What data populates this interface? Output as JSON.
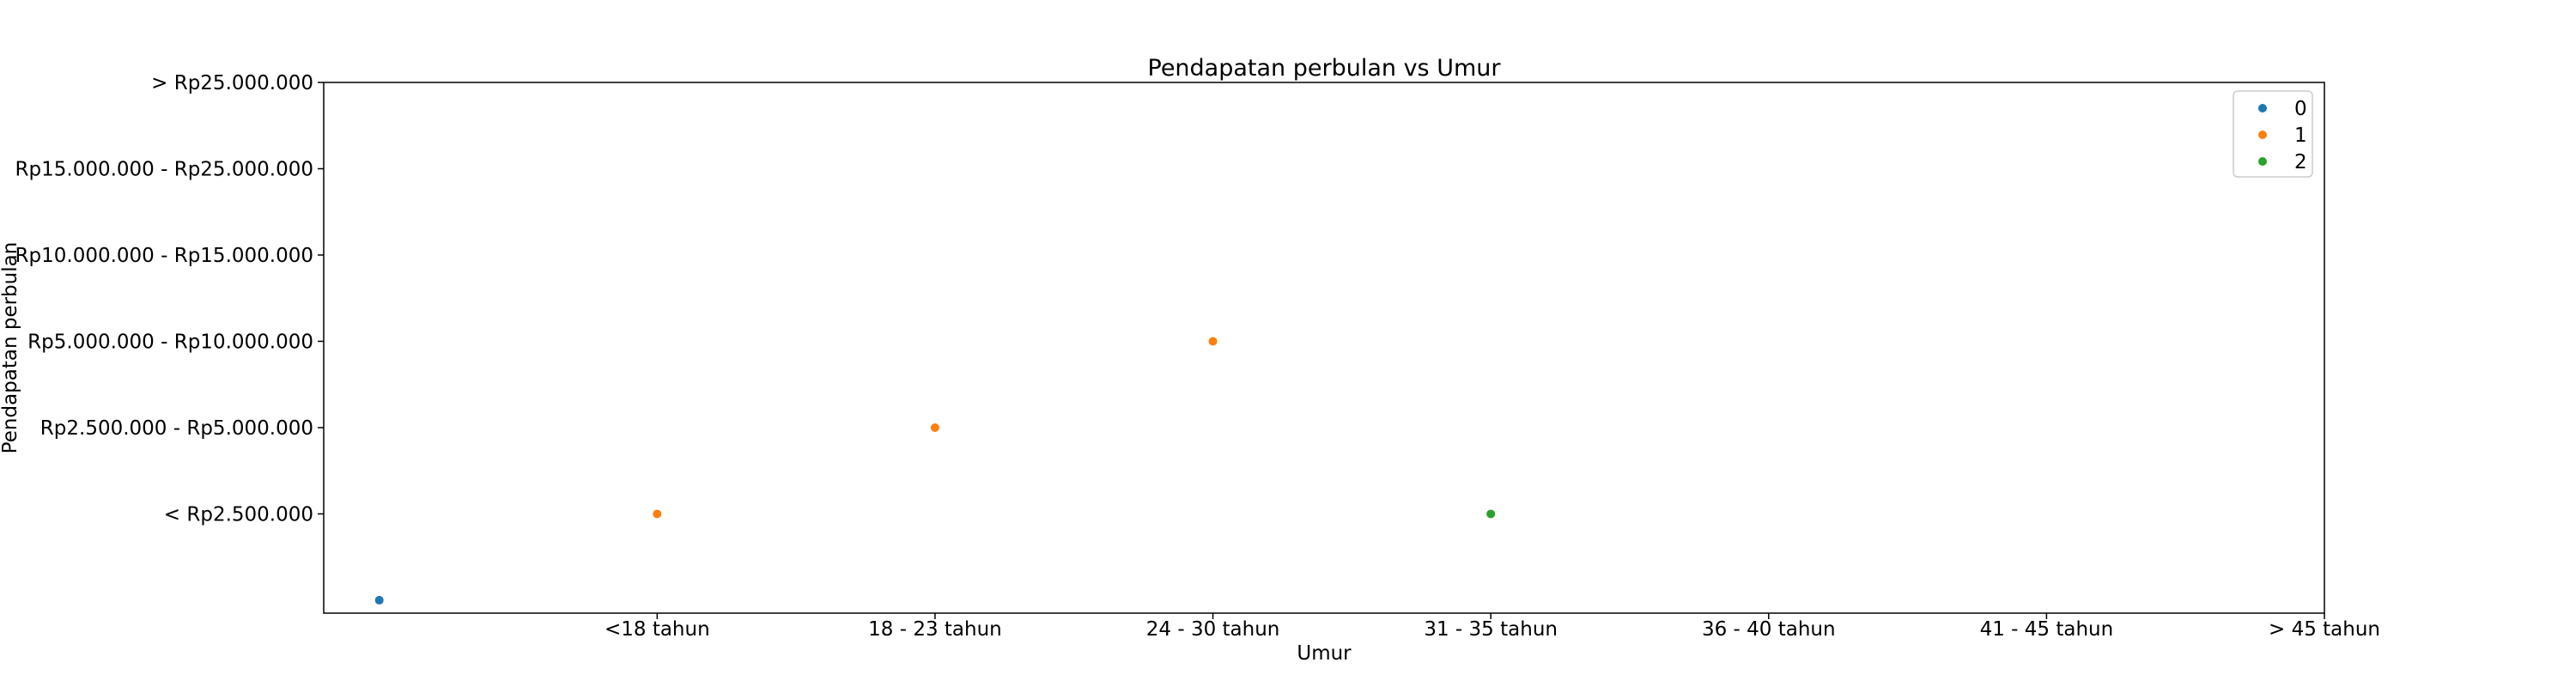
{
  "chart_data": {
    "type": "scatter",
    "title": "Pendapatan perbulan vs Umur",
    "xlabel": "Umur",
    "ylabel": "Pendapatan perbulan",
    "x_ticks": [
      {
        "value": 1,
        "label": "<18 tahun"
      },
      {
        "value": 2,
        "label": "18 - 23 tahun"
      },
      {
        "value": 3,
        "label": "24 - 30 tahun"
      },
      {
        "value": 4,
        "label": "31 - 35 tahun"
      },
      {
        "value": 5,
        "label": "36 - 40 tahun"
      },
      {
        "value": 6,
        "label": "41 - 45 tahun"
      },
      {
        "value": 7,
        "label": "> 45 tahun"
      }
    ],
    "y_ticks": [
      {
        "value": 1,
        "label": "< Rp2.500.000"
      },
      {
        "value": 2,
        "label": "Rp2.500.000 - Rp5.000.000"
      },
      {
        "value": 3,
        "label": "Rp5.000.000 - Rp10.000.000"
      },
      {
        "value": 4,
        "label": "Rp10.000.000 - Rp15.000.000"
      },
      {
        "value": 5,
        "label": "Rp15.000.000 - Rp25.000.000"
      },
      {
        "value": 6,
        "label": "> Rp25.000.000"
      }
    ],
    "xlim": [
      -0.2,
      7
    ],
    "ylim": [
      -0.15,
      6
    ],
    "grid": false,
    "legend": "top-right",
    "series": [
      {
        "name": "0",
        "color": "#1f77b4",
        "points": [
          [
            0,
            0
          ]
        ]
      },
      {
        "name": "1",
        "color": "#ff7f0e",
        "points": [
          [
            1,
            1
          ],
          [
            2,
            2
          ],
          [
            3,
            3
          ]
        ]
      },
      {
        "name": "2",
        "color": "#2ca02c",
        "points": [
          [
            4,
            1
          ]
        ]
      }
    ]
  }
}
